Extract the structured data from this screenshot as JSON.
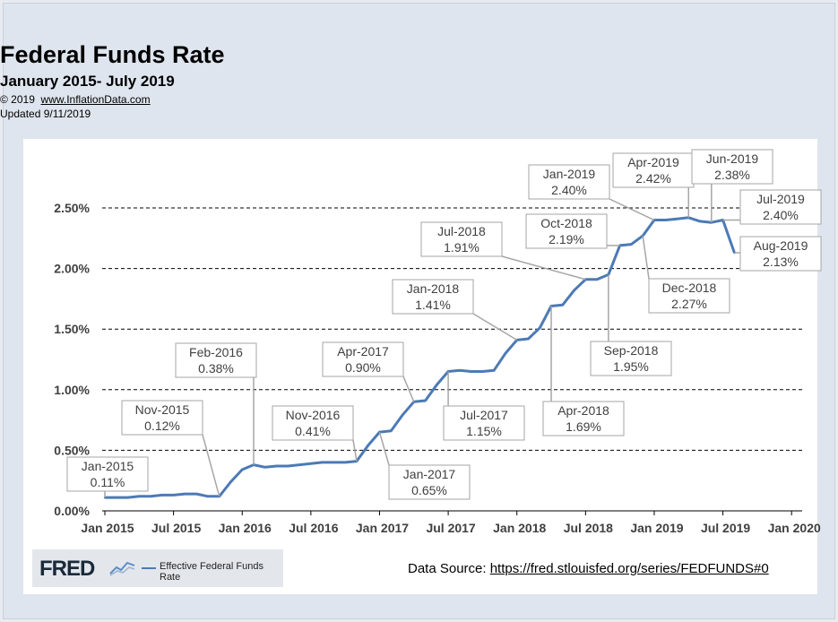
{
  "header": {
    "title": "Federal Funds Rate",
    "subtitle": "January 2015- July 2019",
    "copyright_prefix": "© 2019",
    "copyright_link": "www.InflationData.com",
    "updated": "Updated  9/11/2019"
  },
  "fred": {
    "logo": "FRED",
    "legend": "Effective Federal Funds Rate"
  },
  "source": {
    "label": "Data Source:",
    "url": "https://fred.stlouisfed.org/series/FEDFUNDS#0"
  },
  "colors": {
    "line": "#4c7ab5",
    "grid": "#000000",
    "callout_border": "#a6a6a6",
    "leader": "#a6a6a6"
  },
  "chart_data": {
    "type": "line",
    "title": "Federal Funds Rate",
    "subtitle": "January 2015- July 2019",
    "xlabel": "",
    "ylabel": "",
    "ylim": [
      0,
      2.5
    ],
    "yticks": [
      0,
      0.5,
      1.0,
      1.5,
      2.0,
      2.5
    ],
    "ytick_labels": [
      "0.00%",
      "0.50%",
      "1.00%",
      "1.50%",
      "2.00%",
      "2.50%"
    ],
    "grid": "horizontal dashed",
    "xtick_labels": [
      "Jan 2015",
      "Jul 2015",
      "Jan 2016",
      "Jul 2016",
      "Jan 2017",
      "Jul 2017",
      "Jan 2018",
      "Jul 2018",
      "Jan 2019",
      "Jul 2019",
      "Jan 2020"
    ],
    "series": [
      {
        "name": "Effective Federal Funds Rate",
        "x": [
          "Jan-2015",
          "Feb-2015",
          "Mar-2015",
          "Apr-2015",
          "May-2015",
          "Jun-2015",
          "Jul-2015",
          "Aug-2015",
          "Sep-2015",
          "Oct-2015",
          "Nov-2015",
          "Dec-2015",
          "Jan-2016",
          "Feb-2016",
          "Mar-2016",
          "Apr-2016",
          "May-2016",
          "Jun-2016",
          "Jul-2016",
          "Aug-2016",
          "Sep-2016",
          "Oct-2016",
          "Nov-2016",
          "Dec-2016",
          "Jan-2017",
          "Feb-2017",
          "Mar-2017",
          "Apr-2017",
          "May-2017",
          "Jun-2017",
          "Jul-2017",
          "Aug-2017",
          "Sep-2017",
          "Oct-2017",
          "Nov-2017",
          "Dec-2017",
          "Jan-2018",
          "Feb-2018",
          "Mar-2018",
          "Apr-2018",
          "May-2018",
          "Jun-2018",
          "Jul-2018",
          "Aug-2018",
          "Sep-2018",
          "Oct-2018",
          "Nov-2018",
          "Dec-2018",
          "Jan-2019",
          "Feb-2019",
          "Mar-2019",
          "Apr-2019",
          "May-2019",
          "Jun-2019",
          "Jul-2019",
          "Aug-2019"
        ],
        "values": [
          0.11,
          0.11,
          0.11,
          0.12,
          0.12,
          0.13,
          0.13,
          0.14,
          0.14,
          0.12,
          0.12,
          0.24,
          0.34,
          0.38,
          0.36,
          0.37,
          0.37,
          0.38,
          0.39,
          0.4,
          0.4,
          0.4,
          0.41,
          0.54,
          0.65,
          0.66,
          0.79,
          0.9,
          0.91,
          1.04,
          1.15,
          1.16,
          1.15,
          1.15,
          1.16,
          1.3,
          1.41,
          1.42,
          1.51,
          1.69,
          1.7,
          1.82,
          1.91,
          1.91,
          1.95,
          2.19,
          2.2,
          2.27,
          2.4,
          2.4,
          2.41,
          2.42,
          2.39,
          2.38,
          2.4,
          2.13
        ]
      }
    ],
    "annotations": [
      {
        "label": "Jan-2015",
        "value": "0.11%"
      },
      {
        "label": "Nov-2015",
        "value": "0.12%"
      },
      {
        "label": "Feb-2016",
        "value": "0.38%"
      },
      {
        "label": "Nov-2016",
        "value": "0.41%"
      },
      {
        "label": "Jan-2017",
        "value": "0.65%"
      },
      {
        "label": "Apr-2017",
        "value": "0.90%"
      },
      {
        "label": "Jul-2017",
        "value": "1.15%"
      },
      {
        "label": "Jan-2018",
        "value": "1.41%"
      },
      {
        "label": "Apr-2018",
        "value": "1.69%"
      },
      {
        "label": "Jul-2018",
        "value": "1.91%"
      },
      {
        "label": "Sep-2018",
        "value": "1.95%"
      },
      {
        "label": "Oct-2018",
        "value": "2.19%"
      },
      {
        "label": "Dec-2018",
        "value": "2.27%"
      },
      {
        "label": "Jan-2019",
        "value": "2.40%"
      },
      {
        "label": "Apr-2019",
        "value": "2.42%"
      },
      {
        "label": "Jun-2019",
        "value": "2.38%"
      },
      {
        "label": "Jul-2019",
        "value": "2.40%"
      },
      {
        "label": "Aug-2019",
        "value": "2.13%"
      }
    ]
  }
}
